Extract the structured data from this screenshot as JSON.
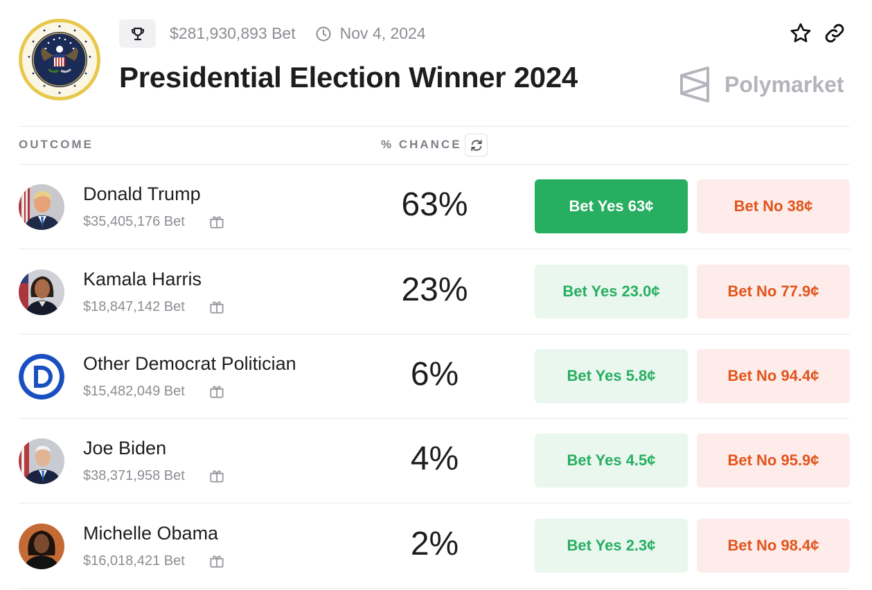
{
  "market": {
    "volume": "$281,930,893 Bet",
    "date": "Nov 4, 2024",
    "title": "Presidential Election Winner 2024",
    "brand": "Polymarket"
  },
  "table": {
    "outcome_header": "OUTCOME",
    "chance_header": "% CHANCE"
  },
  "outcomes": [
    {
      "name": "Donald Trump",
      "volume": "$35,405,176 Bet",
      "chance": "63%",
      "yes": "Bet Yes 63¢",
      "no": "Bet No 38¢"
    },
    {
      "name": "Kamala Harris",
      "volume": "$18,847,142 Bet",
      "chance": "23%",
      "yes": "Bet Yes 23.0¢",
      "no": "Bet No 77.9¢"
    },
    {
      "name": "Other Democrat Politician",
      "volume": "$15,482,049 Bet",
      "chance": "6%",
      "yes": "Bet Yes 5.8¢",
      "no": "Bet No 94.4¢"
    },
    {
      "name": "Joe Biden",
      "volume": "$38,371,958 Bet",
      "chance": "4%",
      "yes": "Bet Yes 4.5¢",
      "no": "Bet No 95.9¢"
    },
    {
      "name": "Michelle Obama",
      "volume": "$16,018,421 Bet",
      "chance": "2%",
      "yes": "Bet Yes 2.3¢",
      "no": "Bet No 98.4¢"
    }
  ],
  "colors": {
    "yes_green": "#27ae60",
    "yes_bg": "#e9f7ef",
    "no_orange": "#e2541b",
    "no_bg": "#fdecea"
  }
}
